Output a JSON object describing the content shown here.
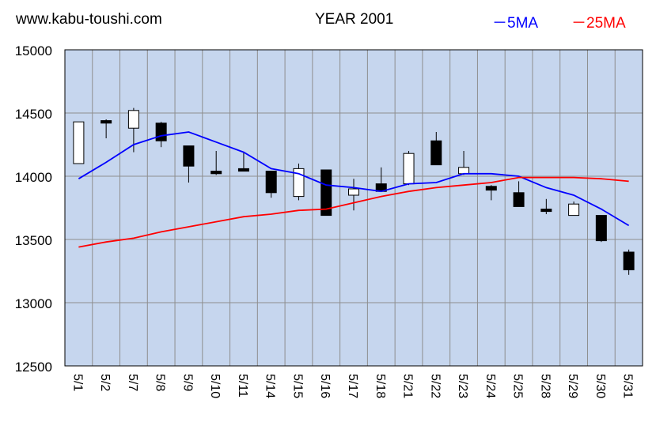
{
  "header": {
    "site": "www.kabu-toushi.com",
    "title": "YEAR 2001"
  },
  "legend": [
    {
      "name": "－5MA",
      "color": "#0000ff"
    },
    {
      "name": "－25MA",
      "color": "#ff0000"
    }
  ],
  "colors": {
    "plot_background": "#c6d6ee",
    "grid": "#8e8e8e",
    "up_candle": "#ffffff",
    "down_candle": "#000000",
    "ma5": "#0000ff",
    "ma25": "#ff0000"
  },
  "chart_data": {
    "type": "candlestick",
    "title": "YEAR 2001",
    "ylim": [
      12500,
      15000
    ],
    "y_ticks": [
      "15000",
      "14500",
      "14000",
      "13500",
      "13000",
      "12500"
    ],
    "grid": true,
    "legend_position": "top-right",
    "categories": [
      "5/1",
      "5/2",
      "5/7",
      "5/8",
      "5/9",
      "5/10",
      "5/11",
      "5/14",
      "5/15",
      "5/16",
      "5/17",
      "5/18",
      "5/21",
      "5/22",
      "5/23",
      "5/24",
      "5/25",
      "5/28",
      "5/29",
      "5/30",
      "5/31"
    ],
    "ohlc": [
      {
        "open": 14100,
        "high": 14430,
        "low": 14100,
        "close": 14430
      },
      {
        "open": 14440,
        "high": 14450,
        "low": 14300,
        "close": 14420
      },
      {
        "open": 14380,
        "high": 14540,
        "low": 14190,
        "close": 14520
      },
      {
        "open": 14420,
        "high": 14430,
        "low": 14230,
        "close": 14280
      },
      {
        "open": 14240,
        "high": 14240,
        "low": 13950,
        "close": 14080
      },
      {
        "open": 14040,
        "high": 14200,
        "low": 14010,
        "close": 14020
      },
      {
        "open": 14060,
        "high": 14190,
        "low": 14040,
        "close": 14040
      },
      {
        "open": 14040,
        "high": 14040,
        "low": 13830,
        "close": 13870
      },
      {
        "open": 13840,
        "high": 14100,
        "low": 13810,
        "close": 14060
      },
      {
        "open": 14050,
        "high": 14050,
        "low": 13690,
        "close": 13690
      },
      {
        "open": 13850,
        "high": 13980,
        "low": 13730,
        "close": 13900
      },
      {
        "open": 13940,
        "high": 14070,
        "low": 13880,
        "close": 13880
      },
      {
        "open": 13940,
        "high": 14200,
        "low": 13930,
        "close": 14180
      },
      {
        "open": 14280,
        "high": 14350,
        "low": 14090,
        "close": 14090
      },
      {
        "open": 14020,
        "high": 14200,
        "low": 14010,
        "close": 14070
      },
      {
        "open": 13920,
        "high": 13930,
        "low": 13810,
        "close": 13890
      },
      {
        "open": 13870,
        "high": 13960,
        "low": 13760,
        "close": 13760
      },
      {
        "open": 13740,
        "high": 13820,
        "low": 13700,
        "close": 13730
      },
      {
        "open": 13690,
        "high": 13800,
        "low": 13690,
        "close": 13780
      },
      {
        "open": 13690,
        "high": 13690,
        "low": 13480,
        "close": 13490
      },
      {
        "open": 13400,
        "high": 13420,
        "low": 13220,
        "close": 13260
      }
    ],
    "series": [
      {
        "name": "－5MA",
        "color": "#0000ff",
        "values": [
          13980,
          14110,
          14250,
          14320,
          14350,
          14270,
          14190,
          14060,
          14020,
          13930,
          13910,
          13880,
          13940,
          13950,
          14020,
          14020,
          14000,
          13910,
          13850,
          13740,
          13610
        ]
      },
      {
        "name": "－25MA",
        "color": "#ff0000",
        "values": [
          13440,
          13480,
          13510,
          13560,
          13600,
          13640,
          13680,
          13700,
          13730,
          13740,
          13790,
          13840,
          13880,
          13910,
          13930,
          13950,
          13990,
          13990,
          13990,
          13980,
          13960
        ]
      }
    ]
  }
}
